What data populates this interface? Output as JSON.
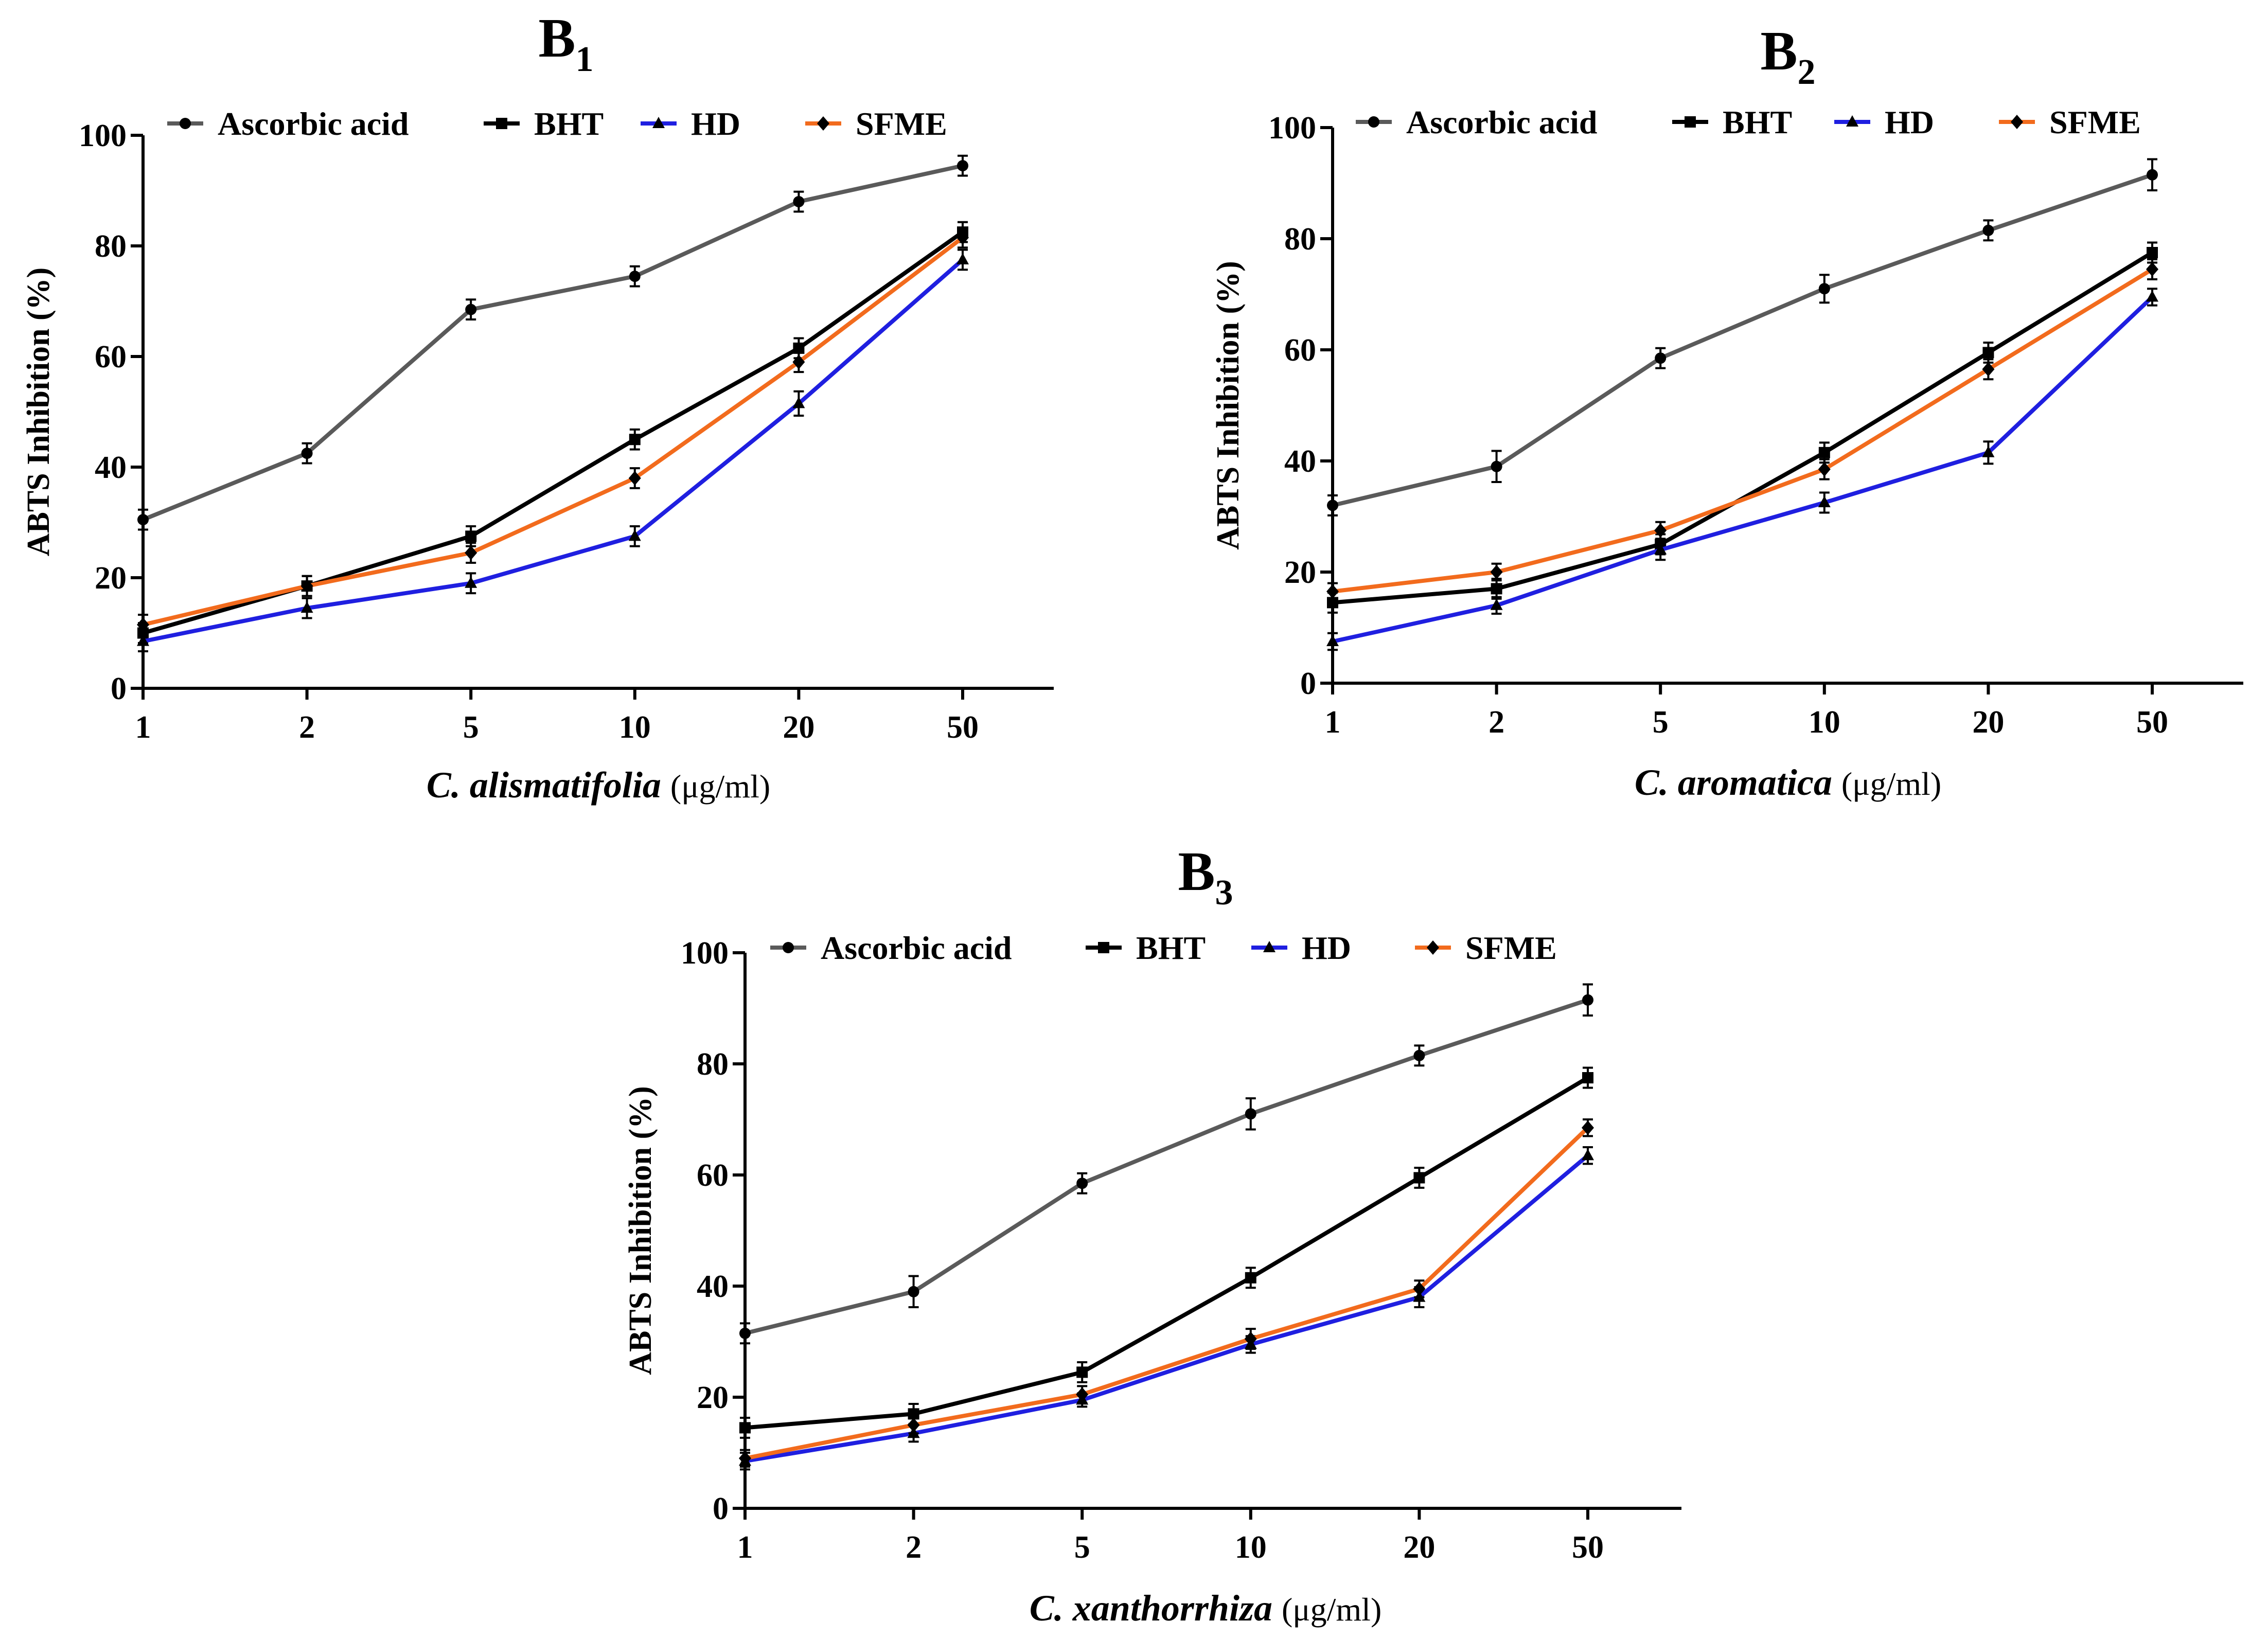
{
  "chart_data": [
    {
      "type": "line",
      "title_main": "B",
      "title_sub": "1",
      "x_categories": [
        "1",
        "2",
        "5",
        "10",
        "20",
        "50"
      ],
      "xlabel_name": "C. alismatifolia",
      "xlabel_unit": "(μg/ml)",
      "ylabel": "ABTS Inhibition (%)",
      "ylim": [
        0,
        100
      ],
      "yticks": [
        "0",
        "20",
        "40",
        "60",
        "80",
        "100"
      ],
      "legend_position": "top",
      "series": [
        {
          "name": "Ascorbic acid",
          "color": "#5a5a5a",
          "marker": "circle",
          "values": [
            30.5,
            42.5,
            68.5,
            74.5,
            88,
            94.5
          ],
          "errors": [
            1.8,
            1.8,
            1.8,
            1.8,
            1.8,
            1.8
          ]
        },
        {
          "name": "BHT",
          "color": "#000000",
          "marker": "square",
          "values": [
            10,
            18.5,
            27.5,
            45,
            61.5,
            82.5
          ],
          "errors": [
            1.8,
            1.8,
            1.8,
            1.8,
            1.8,
            1.8
          ]
        },
        {
          "name": "HD",
          "color": "#1f1fe0",
          "marker": "triangle",
          "values": [
            8.5,
            14.5,
            19,
            27.5,
            51.5,
            77.5
          ],
          "errors": [
            1.8,
            1.8,
            1.8,
            1.8,
            2.2,
            1.8
          ]
        },
        {
          "name": "SFME",
          "color": "#f26b1d",
          "marker": "diamond",
          "values": [
            11.5,
            18.5,
            24.5,
            38,
            59,
            81.5
          ],
          "errors": [
            1.8,
            1.8,
            1.8,
            1.8,
            1.8,
            1.8
          ]
        }
      ]
    },
    {
      "type": "line",
      "title_main": "B",
      "title_sub": "2",
      "x_categories": [
        "1",
        "2",
        "5",
        "10",
        "20",
        "50"
      ],
      "xlabel_name": "C. aromatica",
      "xlabel_unit": "(μg/ml)",
      "ylabel": "ABTS Inhibition (%)",
      "ylim": [
        0,
        100
      ],
      "yticks": [
        "0",
        "20",
        "40",
        "60",
        "80",
        "100"
      ],
      "legend_position": "top",
      "series": [
        {
          "name": "Ascorbic acid",
          "color": "#5a5a5a",
          "marker": "circle",
          "values": [
            32,
            39,
            58.5,
            71,
            81.5,
            91.5
          ],
          "errors": [
            1.8,
            2.8,
            1.8,
            2.5,
            1.8,
            2.8
          ]
        },
        {
          "name": "BHT",
          "color": "#000000",
          "marker": "square",
          "values": [
            14.5,
            17,
            25,
            41.5,
            59.5,
            77.5
          ],
          "errors": [
            1.8,
            1.8,
            1.8,
            1.8,
            1.8,
            1.8
          ]
        },
        {
          "name": "HD",
          "color": "#1f1fe0",
          "marker": "triangle",
          "values": [
            7.5,
            14,
            24,
            32.5,
            41.5,
            69.5
          ],
          "errors": [
            1.5,
            1.5,
            1.8,
            1.8,
            2,
            1.5
          ]
        },
        {
          "name": "SFME",
          "color": "#f26b1d",
          "marker": "diamond",
          "values": [
            16.5,
            20,
            27.5,
            38.5,
            56.5,
            74.5
          ],
          "errors": [
            1.5,
            1.5,
            1.5,
            1.8,
            1.8,
            1.8
          ]
        }
      ]
    },
    {
      "type": "line",
      "title_main": "B",
      "title_sub": "3",
      "x_categories": [
        "1",
        "2",
        "5",
        "10",
        "20",
        "50"
      ],
      "xlabel_name": "C. xanthorrhiza",
      "xlabel_unit": "(μg/ml)",
      "ylabel": "ABTS Inhibition (%)",
      "ylim": [
        0,
        100
      ],
      "yticks": [
        "0",
        "20",
        "40",
        "60",
        "80",
        "100"
      ],
      "legend_position": "top",
      "series": [
        {
          "name": "Ascorbic acid",
          "color": "#5a5a5a",
          "marker": "circle",
          "values": [
            31.5,
            39,
            58.5,
            71,
            81.5,
            91.5
          ],
          "errors": [
            1.8,
            2.8,
            1.8,
            2.8,
            1.8,
            2.8
          ]
        },
        {
          "name": "BHT",
          "color": "#000000",
          "marker": "square",
          "values": [
            14.5,
            17,
            24.5,
            41.5,
            59.5,
            77.5
          ],
          "errors": [
            1.8,
            1.8,
            1.8,
            1.8,
            1.8,
            1.8
          ]
        },
        {
          "name": "HD",
          "color": "#1f1fe0",
          "marker": "triangle",
          "values": [
            8.5,
            13.5,
            19.5,
            29.5,
            38,
            63.5
          ],
          "errors": [
            1.5,
            1.5,
            1.2,
            1.5,
            1.8,
            1.5
          ]
        },
        {
          "name": "SFME",
          "color": "#f26b1d",
          "marker": "diamond",
          "values": [
            9,
            15,
            20.5,
            30.5,
            39.5,
            68.5
          ],
          "errors": [
            1.5,
            1.5,
            1.5,
            1.8,
            1.5,
            1.5
          ]
        }
      ]
    }
  ]
}
